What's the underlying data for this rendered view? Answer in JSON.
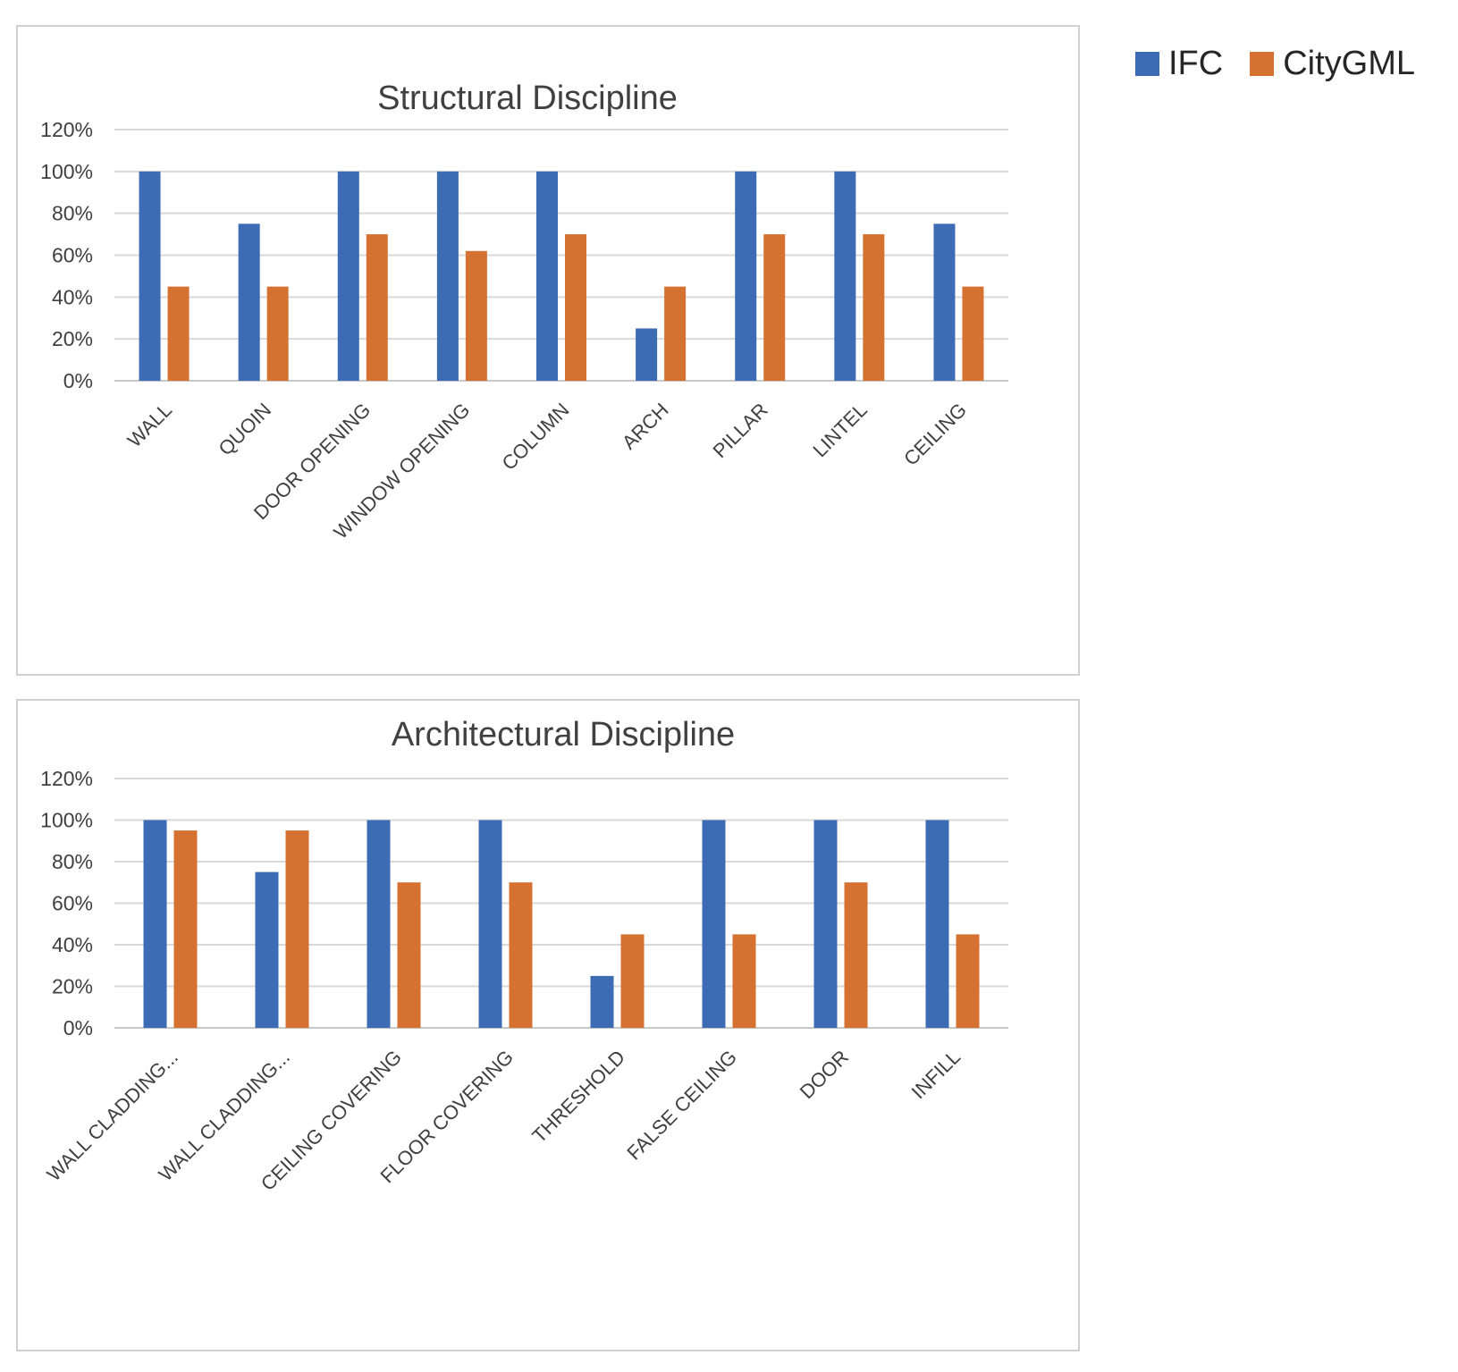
{
  "legend": {
    "position": "top-right",
    "items": [
      {
        "name": "IFC",
        "color": "#3d6bb4"
      },
      {
        "name": "CityGML",
        "color": "#d57231"
      }
    ]
  },
  "chart_data": [
    {
      "type": "bar",
      "title": "Structural Discipline",
      "xlabel": "",
      "ylabel": "",
      "ylim": [
        0,
        120
      ],
      "yticks": [
        "0%",
        "20%",
        "40%",
        "60%",
        "80%",
        "100%",
        "120%"
      ],
      "ytick_values": [
        0,
        20,
        40,
        60,
        80,
        100,
        120
      ],
      "grid": true,
      "categories": [
        "WALL",
        "QUOIN",
        "DOOR OPENING",
        "WINDOW OPENING",
        "COLUMN",
        "ARCH",
        "PILLAR",
        "LINTEL",
        "CEILING"
      ],
      "series": [
        {
          "name": "IFC",
          "color": "#3d6bb4",
          "values": [
            100,
            75,
            100,
            100,
            100,
            25,
            100,
            100,
            75
          ]
        },
        {
          "name": "CityGML",
          "color": "#d57231",
          "values": [
            45,
            45,
            70,
            62,
            70,
            45,
            70,
            70,
            45
          ]
        }
      ]
    },
    {
      "type": "bar",
      "title": "Architectural Discipline",
      "xlabel": "",
      "ylabel": "",
      "ylim": [
        0,
        120
      ],
      "yticks": [
        "0%",
        "20%",
        "40%",
        "60%",
        "80%",
        "100%",
        "120%"
      ],
      "ytick_values": [
        0,
        20,
        40,
        60,
        80,
        100,
        120
      ],
      "grid": true,
      "categories": [
        "WALL CLADDING...",
        "WALL CLADDING...",
        "CEILING COVERING",
        "FLOOR COVERING",
        "THRESHOLD",
        "FALSE CEILING",
        "DOOR",
        "INFILL"
      ],
      "series": [
        {
          "name": "IFC",
          "color": "#3d6bb4",
          "values": [
            100,
            75,
            100,
            100,
            25,
            100,
            100,
            100
          ]
        },
        {
          "name": "CityGML",
          "color": "#d57231",
          "values": [
            95,
            95,
            70,
            70,
            45,
            45,
            70,
            45
          ]
        }
      ]
    }
  ]
}
